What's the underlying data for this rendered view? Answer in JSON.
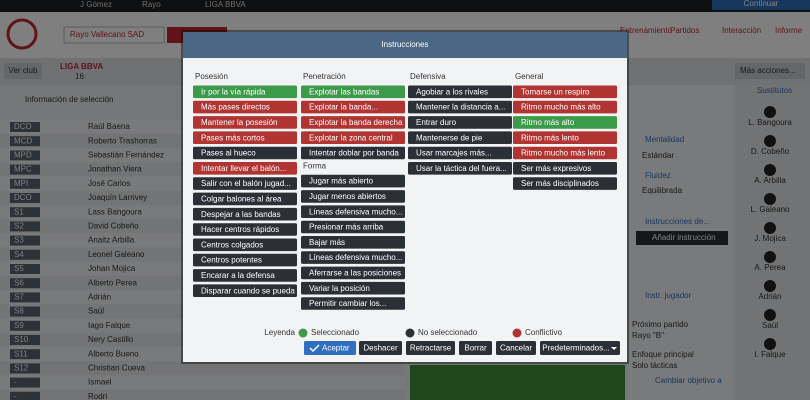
{
  "top_bar": {
    "manager": "J Gómez",
    "club": "Rayo",
    "league": "LIGA BBVA",
    "continue": "Continuar"
  },
  "header": {
    "team": "Rayo Vallecano SAD",
    "nav": [
      "Entrenamiento",
      "Partidos",
      "Interacción",
      "Informe"
    ],
    "more_actions": "Más acciones..."
  },
  "sidebar": {
    "view_club": "Ver club",
    "league": "LIGA BBVA",
    "position": "16",
    "selection_info": "Información de selección"
  },
  "players": [
    {
      "pos": "DCO",
      "name": "Raúl Baena"
    },
    {
      "pos": "MCD",
      "name": "Roberto Trashorras"
    },
    {
      "pos": "MPD",
      "name": "Sebastián Fernández"
    },
    {
      "pos": "MPC",
      "name": "Jonathan Viera"
    },
    {
      "pos": "MPI",
      "name": "José Carlos"
    },
    {
      "pos": "DCO",
      "name": "Joaquín Larrivey"
    },
    {
      "pos": "S1",
      "name": "Lass Bangoura"
    },
    {
      "pos": "S2",
      "name": "David Cobeño"
    },
    {
      "pos": "S3",
      "name": "Anaitz Arbilla"
    },
    {
      "pos": "S4",
      "name": "Leonel Galeano"
    },
    {
      "pos": "S5",
      "name": "Johan Mojica"
    },
    {
      "pos": "S6",
      "name": "Alberto Perea"
    },
    {
      "pos": "S7",
      "name": "Adrián"
    },
    {
      "pos": "S8",
      "name": "Saúl"
    },
    {
      "pos": "S9",
      "name": "Iago Falque"
    },
    {
      "pos": "S10",
      "name": "Nery Castillo"
    },
    {
      "pos": "S11",
      "name": "Alberto Bueno"
    },
    {
      "pos": "S12",
      "name": "Christian Cueva"
    },
    {
      "pos": "-",
      "name": "Ismael"
    },
    {
      "pos": "-",
      "name": "Rodri"
    }
  ],
  "right_panel": {
    "mentality_label": "Mentalidad",
    "mentality": "Estándar",
    "fluidity_label": "Fluidez",
    "fluidity": "Equilibrada",
    "instructions": "Instrucciones de...",
    "add_instruction": "Añadir instrucción",
    "player_instr": "Instr. jugador",
    "next_match_label": "Próximo partido",
    "next_match": "Rayo \"B\"",
    "focus_label": "Enfoque principal",
    "focus": "Solo tácticas",
    "change_goal": "Cambiar objetivo a"
  },
  "substitutes": {
    "title": "Sustitutos",
    "names": [
      "L. Bangoura",
      "D. Cobeño",
      "A. Arbilla",
      "L. Galeano",
      "J. Mojica",
      "A. Perea",
      "Adrián",
      "Saúl",
      "I. Falque"
    ]
  },
  "modal": {
    "title": "Instrucciones",
    "columns": [
      {
        "groups": [
          {
            "heading": "Posesión",
            "items": [
              {
                "label": "Ir por la vía rápida",
                "color": "#3c9a48"
              },
              {
                "label": "Más pases directos",
                "color": "#b03431"
              },
              {
                "label": "Mantener la posesión",
                "color": "#b03431"
              },
              {
                "label": "Pases más cortos",
                "color": "#b03431"
              },
              {
                "label": "Pases al hueco",
                "color": "#2b2f36"
              },
              {
                "label": "Intentar llevar el balón...",
                "color": "#b03431"
              },
              {
                "label": "Salir con el balón jugad...",
                "color": "#2b2f36"
              },
              {
                "label": "Colgar balones al área",
                "color": "#2b2f36"
              },
              {
                "label": "Despejar a las bandas",
                "color": "#2b2f36"
              },
              {
                "label": "Hacer centros rápidos",
                "color": "#2b2f36"
              },
              {
                "label": "Centros colgados",
                "color": "#2b2f36"
              },
              {
                "label": "Centros potentes",
                "color": "#2b2f36"
              },
              {
                "label": "Encarar a la defensa",
                "color": "#2b2f36"
              },
              {
                "label": "Disparar cuando se pueda",
                "color": "#2b2f36"
              }
            ]
          }
        ]
      },
      {
        "groups": [
          {
            "heading": "Penetración",
            "items": [
              {
                "label": "Explotar las bandas",
                "color": "#3c9a48"
              },
              {
                "label": "Explotar la banda...",
                "color": "#b03431"
              },
              {
                "label": "Explotar la banda derecha",
                "color": "#b03431"
              },
              {
                "label": "Explotar la zona central",
                "color": "#b03431"
              },
              {
                "label": "Intentar doblar por banda",
                "color": "#2b2f36"
              }
            ]
          },
          {
            "heading": "Forma",
            "items": [
              {
                "label": "Jugar más abierto",
                "color": "#2b2f36"
              },
              {
                "label": "Jugar menos abiertos",
                "color": "#2b2f36"
              },
              {
                "label": "Líneas defensiva mucho...",
                "color": "#2b2f36"
              },
              {
                "label": "Presionar más arriba",
                "color": "#2b2f36"
              },
              {
                "label": "Bajar más",
                "color": "#2b2f36"
              },
              {
                "label": "Líneas defensiva mucho...",
                "color": "#2b2f36"
              },
              {
                "label": "Aferrarse a las posiciones",
                "color": "#2b2f36"
              },
              {
                "label": "Variar la posición",
                "color": "#2b2f36"
              },
              {
                "label": "Permitir cambiar los...",
                "color": "#2b2f36"
              }
            ]
          }
        ]
      },
      {
        "groups": [
          {
            "heading": "Defensiva",
            "items": [
              {
                "label": "Agobiar a los rivales",
                "color": "#2b2f36"
              },
              {
                "label": "Mantener la distancia a...",
                "color": "#2b2f36"
              },
              {
                "label": "Entrar duro",
                "color": "#2b2f36"
              },
              {
                "label": "Mantenerse de pie",
                "color": "#2b2f36"
              },
              {
                "label": "Usar marcajes más...",
                "color": "#2b2f36"
              },
              {
                "label": "Usar la táctica del fuera...",
                "color": "#2b2f36"
              }
            ]
          }
        ]
      },
      {
        "groups": [
          {
            "heading": "General",
            "items": [
              {
                "label": "Tomarse un respiro",
                "color": "#b03431"
              },
              {
                "label": "Ritmo mucho más alto",
                "color": "#b03431"
              },
              {
                "label": "Ritmo más alto",
                "color": "#3c9a48"
              },
              {
                "label": "Ritmo más lento",
                "color": "#b03431"
              },
              {
                "label": "Ritmo mucho más lento",
                "color": "#b03431"
              },
              {
                "label": "Ser más expresivos",
                "color": "#2b2f36"
              },
              {
                "label": "Ser más disciplinados",
                "color": "#2b2f36"
              }
            ]
          }
        ]
      }
    ],
    "legend_title": "Leyenda",
    "legend": [
      {
        "label": "Seleccionado",
        "color": "#3c9a48"
      },
      {
        "label": "No seleccionado",
        "color": "#2b2f36"
      },
      {
        "label": "Conflictivo",
        "color": "#b03431"
      }
    ],
    "buttons": [
      "Aceptar",
      "Deshacer",
      "Retractarse",
      "Borrar",
      "Cancelar",
      "Predeterminados..."
    ]
  }
}
